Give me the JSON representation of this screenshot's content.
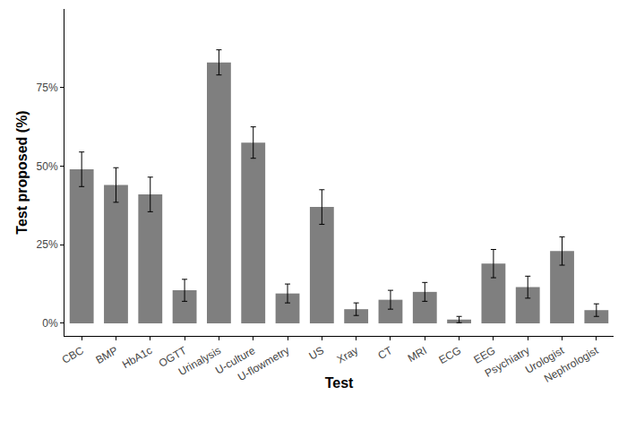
{
  "chart_data": {
    "type": "bar",
    "x_label": "Test",
    "y_label": "Test proposed (%)",
    "categories": [
      "CBC",
      "BMP",
      "HbA1c",
      "OGTT",
      "Urinalysis",
      "U-culture",
      "U-flowmetry",
      "US",
      "Xray",
      "CT",
      "MRI",
      "ECG",
      "EEG",
      "Psychiatry",
      "Urologist",
      "Nephrologist"
    ],
    "values": [
      49,
      44,
      41,
      10.5,
      83,
      57.5,
      9.5,
      37,
      4.5,
      7.5,
      10,
      1.2,
      19,
      11.5,
      23,
      4.2
    ],
    "errors": [
      5.5,
      5.5,
      5.5,
      3.5,
      4,
      5,
      3,
      5.5,
      2,
      3,
      3,
      1,
      4.5,
      3.5,
      4.5,
      2
    ],
    "color": "#7f7f7f",
    "ylim": [
      -4,
      100
    ],
    "yticks": [
      {
        "value": 0,
        "label": "0%"
      },
      {
        "value": 25,
        "label": "25%"
      },
      {
        "value": 50,
        "label": "50%"
      },
      {
        "value": 75,
        "label": "75%"
      }
    ],
    "grid": false
  }
}
